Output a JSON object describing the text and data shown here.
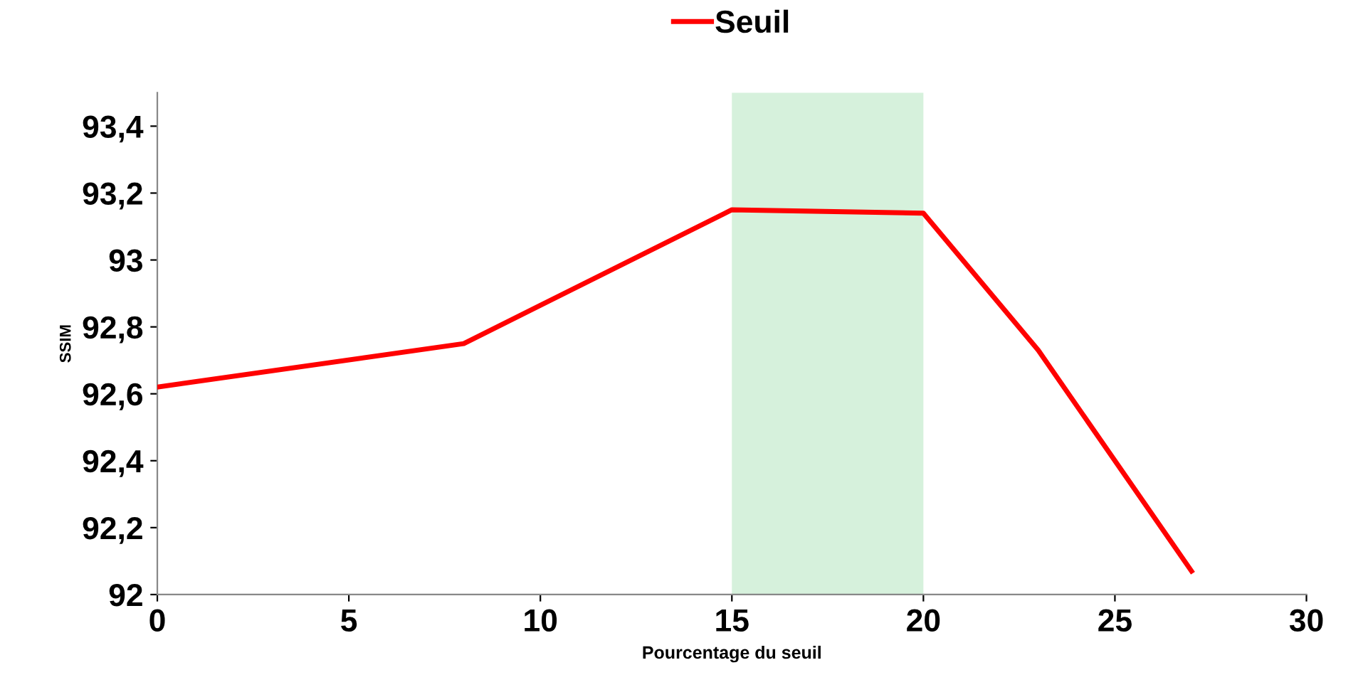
{
  "chart_data": {
    "type": "line",
    "xlabel": "Pourcentage du seuil",
    "ylabel": "SSIM",
    "x": [
      0,
      8,
      15,
      20,
      23,
      27
    ],
    "series": [
      {
        "name": "Seuil",
        "color": "#ff0000",
        "values": [
          92.62,
          92.75,
          93.15,
          93.14,
          92.73,
          92.07
        ]
      }
    ],
    "xlim": [
      0,
      30
    ],
    "xticks": [
      0,
      5,
      10,
      15,
      20,
      25,
      30
    ],
    "ylim": [
      92,
      93.5
    ],
    "yticks": [
      {
        "value": 92,
        "label": "92"
      },
      {
        "value": 92.2,
        "label": "92,2"
      },
      {
        "value": 92.4,
        "label": "92,4"
      },
      {
        "value": 92.6,
        "label": "92,6"
      },
      {
        "value": 92.8,
        "label": "92,8"
      },
      {
        "value": 93,
        "label": "93"
      },
      {
        "value": 93.2,
        "label": "93,2"
      },
      {
        "value": 93.4,
        "label": "93,4"
      }
    ],
    "bands": [
      {
        "axis": "x",
        "from": 15,
        "to": 20,
        "color": "#d6f1dc"
      }
    ],
    "grid": false,
    "legend": "top",
    "marker": "none",
    "line_style": "solid"
  }
}
